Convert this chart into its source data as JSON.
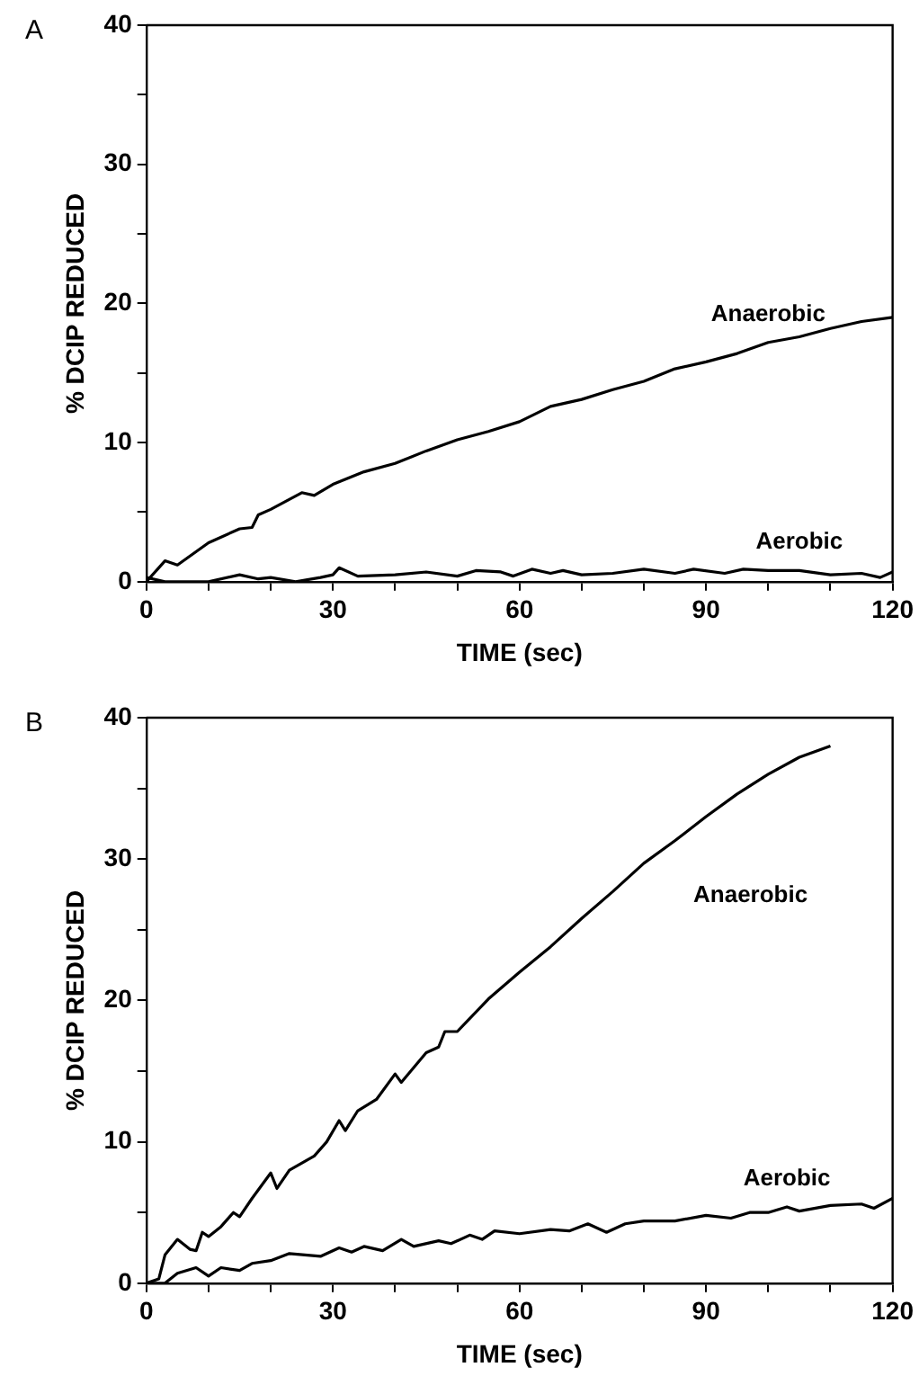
{
  "chart_data": [
    {
      "type": "line",
      "title": "A",
      "xlabel": "TIME (sec)",
      "ylabel": "% DCIP REDUCED",
      "xlim": [
        0,
        120
      ],
      "ylim": [
        0,
        40
      ],
      "xticks": [
        0,
        {
          "value": 10,
          "label": null
        },
        {
          "value": 20,
          "label": null
        },
        30,
        {
          "value": 40,
          "label": null
        },
        {
          "value": 50,
          "label": null
        },
        60,
        {
          "value": 70,
          "label": null
        },
        {
          "value": 80,
          "label": null
        },
        90,
        {
          "value": 100,
          "label": null
        },
        {
          "value": 110,
          "label": null
        },
        120
      ],
      "yticks": [
        0,
        {
          "value": 5,
          "label": null
        },
        10,
        {
          "value": 15,
          "label": null
        },
        20,
        {
          "value": 25,
          "label": null
        },
        30,
        {
          "value": 35,
          "label": null
        },
        40
      ],
      "grid": false,
      "legend": false,
      "marker": "none",
      "line_style": "solid",
      "series": [
        {
          "name": "Anaerobic",
          "color": "#000000",
          "x": [
            0,
            3,
            5,
            10,
            15,
            17,
            18,
            20,
            25,
            27,
            30,
            35,
            40,
            45,
            50,
            55,
            60,
            65,
            70,
            75,
            80,
            85,
            90,
            95,
            100,
            105,
            110,
            115,
            120
          ],
          "values": [
            0,
            1.5,
            1.2,
            2.8,
            3.8,
            3.9,
            4.8,
            5.2,
            6.4,
            6.2,
            7,
            7.9,
            8.5,
            9.4,
            10.2,
            10.8,
            11.5,
            12.6,
            13.1,
            13.8,
            14.4,
            15.3,
            15.8,
            16.4,
            17.2,
            17.6,
            18.2,
            18.7,
            19
          ]
        },
        {
          "name": "Aerobic",
          "color": "#000000",
          "x": [
            0,
            3,
            10,
            15,
            18,
            20,
            24,
            28,
            30,
            31,
            34,
            40,
            45,
            50,
            53,
            57,
            59,
            62,
            65,
            67,
            70,
            75,
            80,
            85,
            88,
            93,
            96,
            100,
            105,
            110,
            115,
            118,
            120
          ],
          "values": [
            0.3,
            0,
            0,
            0.5,
            0.2,
            0.3,
            0,
            0.3,
            0.5,
            1,
            0.4,
            0.5,
            0.7,
            0.4,
            0.8,
            0.7,
            0.4,
            0.9,
            0.6,
            0.8,
            0.5,
            0.6,
            0.9,
            0.6,
            0.9,
            0.6,
            0.9,
            0.8,
            0.8,
            0.5,
            0.6,
            0.3,
            0.7
          ]
        }
      ]
    },
    {
      "type": "line",
      "title": "B",
      "xlabel": "TIME (sec)",
      "ylabel": "% DCIP REDUCED",
      "xlim": [
        0,
        120
      ],
      "ylim": [
        0,
        40
      ],
      "xticks": [
        0,
        {
          "value": 10,
          "label": null
        },
        {
          "value": 20,
          "label": null
        },
        30,
        {
          "value": 40,
          "label": null
        },
        {
          "value": 50,
          "label": null
        },
        60,
        {
          "value": 70,
          "label": null
        },
        {
          "value": 80,
          "label": null
        },
        90,
        {
          "value": 100,
          "label": null
        },
        {
          "value": 110,
          "label": null
        },
        120
      ],
      "yticks": [
        0,
        {
          "value": 5,
          "label": null
        },
        10,
        {
          "value": 15,
          "label": null
        },
        20,
        {
          "value": 25,
          "label": null
        },
        30,
        {
          "value": 35,
          "label": null
        },
        40
      ],
      "grid": false,
      "legend": false,
      "marker": "none",
      "line_style": "solid",
      "series": [
        {
          "name": "Anaerobic",
          "color": "#000000",
          "x": [
            0,
            2,
            3,
            5,
            7,
            8,
            9,
            10,
            12,
            14,
            15,
            17,
            20,
            21,
            23,
            27,
            29,
            31,
            32,
            34,
            37,
            40,
            41,
            45,
            47,
            48,
            50,
            55,
            60,
            65,
            70,
            75,
            80,
            85,
            90,
            95,
            100,
            105,
            110
          ],
          "values": [
            0,
            0.3,
            2,
            3.1,
            2.4,
            2.3,
            3.6,
            3.3,
            4,
            5,
            4.7,
            6,
            7.8,
            6.7,
            8,
            9,
            10,
            11.5,
            10.8,
            12.2,
            13,
            14.8,
            14.2,
            16.3,
            16.7,
            17.8,
            17.8,
            20.1,
            22,
            23.8,
            25.8,
            27.7,
            29.7,
            31.3,
            33,
            34.6,
            36,
            37.2,
            38
          ]
        },
        {
          "name": "Aerobic",
          "color": "#000000",
          "x": [
            0,
            3,
            5,
            8,
            10,
            12,
            15,
            17,
            20,
            23,
            28,
            31,
            33,
            35,
            38,
            41,
            43,
            47,
            49,
            52,
            54,
            56,
            60,
            65,
            68,
            71,
            74,
            77,
            80,
            85,
            90,
            94,
            97,
            100,
            103,
            105,
            110,
            115,
            117,
            120
          ],
          "values": [
            0,
            0,
            0.7,
            1.1,
            0.5,
            1.1,
            0.9,
            1.4,
            1.6,
            2.1,
            1.9,
            2.5,
            2.2,
            2.6,
            2.3,
            3.1,
            2.6,
            3,
            2.8,
            3.4,
            3.1,
            3.7,
            3.5,
            3.8,
            3.7,
            4.2,
            3.6,
            4.2,
            4.4,
            4.4,
            4.8,
            4.6,
            5,
            5,
            5.4,
            5.1,
            5.5,
            5.6,
            5.3,
            6
          ]
        }
      ]
    }
  ]
}
